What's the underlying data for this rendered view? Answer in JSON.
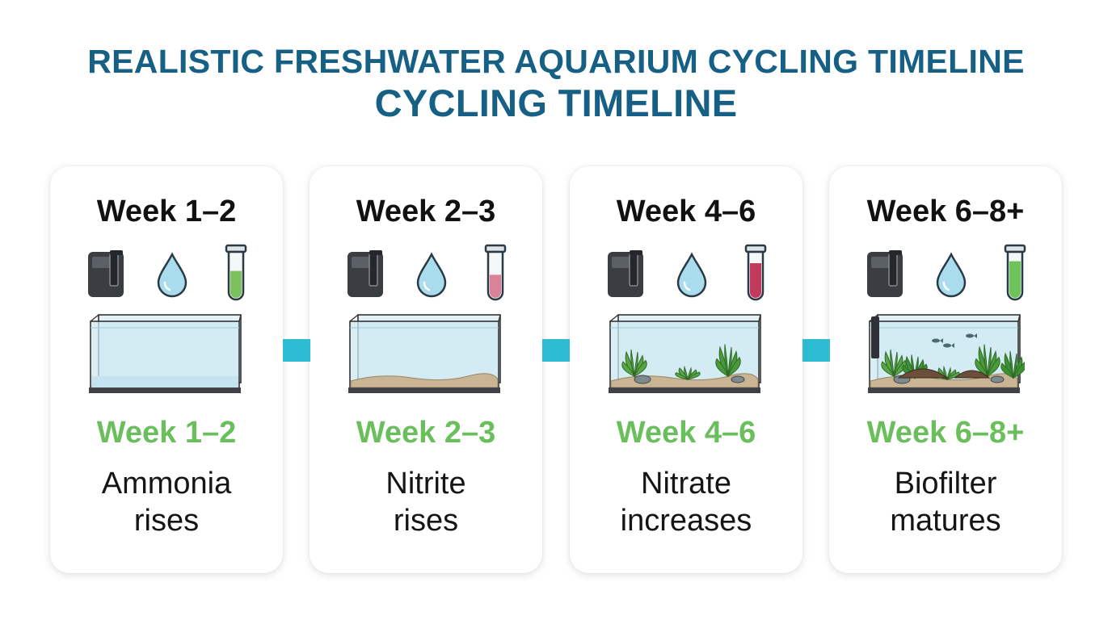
{
  "title": {
    "line1": "REALISTIC FRESHWATER AQUARIUM CYCLING TIMELINE",
    "line2": "CYCLING TIMELINE"
  },
  "colors": {
    "title": "#165f85",
    "stage_label": "#6abf5c",
    "connector": "#2dbcd3",
    "filter": "#3a3e43",
    "water_drop": "#a9dcec",
    "tank_water": "#d9eef5",
    "substrate": "#c9b493",
    "plant": "#4a9a3a"
  },
  "stages": [
    {
      "heading": "Week 1–2",
      "label": "Week 1–2",
      "caption_line1": "Ammonia",
      "caption_line2": "rises",
      "icons": [
        "filter-icon",
        "water-drop-icon",
        "test-tube-icon"
      ],
      "test_tube_color": "#7bc25e",
      "tank_state": "empty-water"
    },
    {
      "heading": "Week 2–3",
      "label": "Week 2–3",
      "caption_line1": "Nitrite",
      "caption_line2": "rises",
      "icons": [
        "filter-icon",
        "water-drop-icon",
        "test-tube-icon"
      ],
      "test_tube_color": "#d9839b",
      "tank_state": "substrate"
    },
    {
      "heading": "Week 4–6",
      "label": "Week 4–6",
      "caption_line1": "Nitrate",
      "caption_line2": "increases",
      "icons": [
        "filter-icon",
        "water-drop-icon",
        "test-tube-icon"
      ],
      "test_tube_color": "#c23a5c",
      "tank_state": "plants"
    },
    {
      "heading": "Week 6–8+",
      "label": "Week 6–8+",
      "caption_line1": "Biofilter",
      "caption_line2": "matures",
      "icons": [
        "filter-icon",
        "water-drop-icon",
        "test-tube-icon"
      ],
      "test_tube_color": "#6cc35a",
      "tank_state": "planted-with-fish"
    }
  ]
}
